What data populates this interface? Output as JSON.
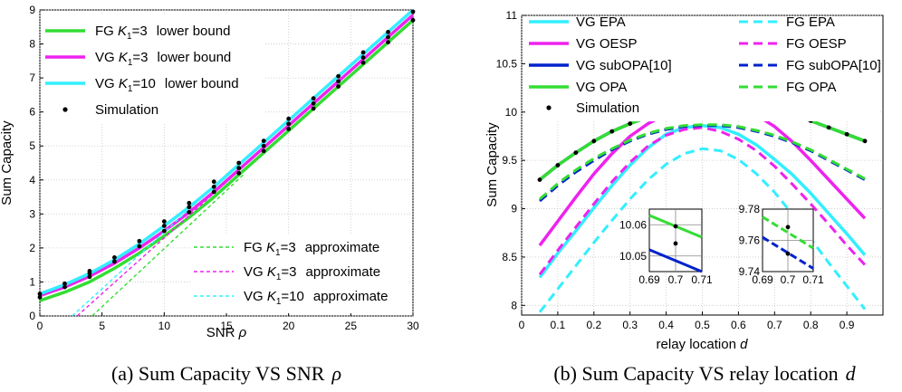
{
  "figures": [
    {
      "caption_text": "(a) Sum Capacity VS SNR",
      "caption_symbol": "ρ",
      "legend_main": [
        {
          "text": "FG",
          "k": "K",
          "sub": "1",
          "val": "=3",
          "rest": "lower bound",
          "color": "#33dd33"
        },
        {
          "text": "VG",
          "k": "K",
          "sub": "1",
          "val": "=3",
          "rest": "lower bound",
          "color": "#ee22ee"
        },
        {
          "text": "VG",
          "k": "K",
          "sub": "1",
          "val": "=10",
          "rest": "lower bound",
          "color": "#33eeff"
        },
        {
          "text": "Simulation",
          "color": "#000000"
        }
      ],
      "legend_approx": [
        {
          "text": "FG",
          "k": "K",
          "sub": "1",
          "val": "=3",
          "rest": "approximate",
          "color": "#33dd33"
        },
        {
          "text": "VG",
          "k": "K",
          "sub": "1",
          "val": "=3",
          "rest": "approximate",
          "color": "#ee22ee"
        },
        {
          "text": "VG",
          "k": "K",
          "sub": "1",
          "val": "=10",
          "rest": "approximate",
          "color": "#33eeff"
        }
      ]
    },
    {
      "caption_text": "(b) Sum Capacity VS relay location",
      "caption_symbol": "d",
      "inset_left": {
        "xlim": [
          0.69,
          0.71
        ],
        "ylim": [
          10.045,
          10.065
        ],
        "xticks": [
          "0.69",
          "0.7",
          "0.71"
        ],
        "yticks": [
          "10.06",
          "10.05"
        ]
      },
      "inset_right": {
        "xlim": [
          0.69,
          0.71
        ],
        "ylim": [
          9.74,
          9.78
        ],
        "xticks": [
          "0.69",
          "0.7",
          "0.71"
        ],
        "yticks": [
          "9.78",
          "9.76",
          "9.74"
        ]
      }
    }
  ],
  "chart_data": [
    {
      "type": "line",
      "title": "",
      "xlabel": "SNR",
      "xlabel_symbol": "ρ",
      "ylabel": "Sum Capacity",
      "xlim": [
        0,
        30
      ],
      "ylim": [
        0,
        9
      ],
      "xticks": [
        0,
        5,
        10,
        15,
        20,
        25,
        30
      ],
      "yticks": [
        0,
        1,
        2,
        3,
        4,
        5,
        6,
        7,
        8,
        9
      ],
      "grid": true,
      "legend_position": "top-left",
      "series": [
        {
          "name": "FG K1=3 lower bound",
          "style": "solid",
          "color": "#33dd33",
          "x": [
            0,
            2,
            4,
            6,
            8,
            10,
            12,
            14,
            16,
            18,
            20,
            22,
            24,
            26,
            28,
            30
          ],
          "y": [
            0.45,
            0.7,
            1.0,
            1.4,
            1.85,
            2.35,
            2.9,
            3.5,
            4.15,
            4.8,
            5.45,
            6.1,
            6.75,
            7.4,
            8.05,
            8.7
          ]
        },
        {
          "name": "VG K1=3 lower bound",
          "style": "solid",
          "color": "#ee22ee",
          "x": [
            0,
            2,
            4,
            6,
            8,
            10,
            12,
            14,
            16,
            18,
            20,
            22,
            24,
            26,
            28,
            30
          ],
          "y": [
            0.6,
            0.85,
            1.17,
            1.55,
            2.0,
            2.5,
            3.05,
            3.65,
            4.3,
            4.95,
            5.6,
            6.25,
            6.9,
            7.55,
            8.2,
            8.85
          ]
        },
        {
          "name": "VG K1=10 lower bound",
          "style": "solid",
          "color": "#33eeff",
          "x": [
            0,
            2,
            4,
            6,
            8,
            10,
            12,
            14,
            16,
            18,
            20,
            22,
            24,
            26,
            28,
            30
          ],
          "y": [
            0.65,
            0.92,
            1.25,
            1.65,
            2.12,
            2.65,
            3.2,
            3.8,
            4.45,
            5.1,
            5.75,
            6.4,
            7.05,
            7.7,
            8.35,
            9.0
          ]
        },
        {
          "name": "FG K1=3 approximate",
          "style": "dashed",
          "color": "#33dd33",
          "x": [
            4.2,
            16.5
          ],
          "y": [
            0.0,
            4.2
          ]
        },
        {
          "name": "VG K1=3 approximate",
          "style": "dashed",
          "color": "#ee22ee",
          "x": [
            3.0,
            15.8
          ],
          "y": [
            0.0,
            4.2
          ]
        },
        {
          "name": "VG K1=10 approximate",
          "style": "dashed",
          "color": "#33eeff",
          "x": [
            2.6,
            15.5
          ],
          "y": [
            0.0,
            4.3
          ]
        },
        {
          "name": "Simulation",
          "style": "markers",
          "color": "#000000",
          "x": [
            0,
            0,
            2,
            2,
            4,
            4,
            4,
            6,
            6,
            8,
            8,
            10,
            10,
            10,
            12,
            12,
            12,
            14,
            14,
            14,
            16,
            16,
            16,
            18,
            18,
            18,
            20,
            20,
            20,
            22,
            22,
            22,
            24,
            24,
            24,
            26,
            26,
            26,
            28,
            28,
            28,
            30,
            30
          ],
          "y": [
            0.55,
            0.65,
            0.85,
            0.95,
            1.15,
            1.25,
            1.32,
            1.6,
            1.72,
            2.05,
            2.2,
            2.5,
            2.65,
            2.78,
            3.05,
            3.2,
            3.32,
            3.65,
            3.8,
            3.95,
            4.2,
            4.35,
            4.5,
            4.85,
            5.0,
            5.15,
            5.5,
            5.65,
            5.8,
            6.1,
            6.25,
            6.4,
            6.75,
            6.9,
            7.05,
            7.45,
            7.6,
            7.75,
            8.05,
            8.2,
            8.35,
            8.7,
            8.95
          ]
        }
      ]
    },
    {
      "type": "line",
      "title": "",
      "xlabel": "relay location",
      "xlabel_symbol": "d",
      "ylabel": "Sum Capacity",
      "xlim": [
        0,
        1
      ],
      "ylim": [
        7.9,
        11
      ],
      "xticks": [
        0,
        0.1,
        0.2,
        0.3,
        0.4,
        0.5,
        0.6,
        0.7,
        0.8,
        0.9
      ],
      "yticks": [
        8,
        8.5,
        9,
        9.5,
        10,
        10.5,
        11
      ],
      "grid": true,
      "legend_position": "top",
      "series": [
        {
          "name": "VG EPA",
          "style": "solid",
          "color": "#33eeff",
          "x": [
            0.05,
            0.1,
            0.15,
            0.2,
            0.25,
            0.3,
            0.35,
            0.4,
            0.45,
            0.5,
            0.55,
            0.6,
            0.65,
            0.7,
            0.75,
            0.8,
            0.85,
            0.9,
            0.95
          ],
          "y": [
            8.29,
            8.54,
            8.77,
            9.01,
            9.24,
            9.45,
            9.63,
            9.77,
            9.84,
            9.86,
            9.84,
            9.77,
            9.66,
            9.51,
            9.35,
            9.16,
            8.95,
            8.74,
            8.52
          ]
        },
        {
          "name": "FG EPA",
          "style": "dashed",
          "color": "#33eeff",
          "x": [
            0.05,
            0.1,
            0.15,
            0.2,
            0.25,
            0.3,
            0.35,
            0.4,
            0.45,
            0.5,
            0.55,
            0.6,
            0.65,
            0.7,
            0.75,
            0.8,
            0.85,
            0.9,
            0.95
          ],
          "y": [
            7.93,
            8.17,
            8.41,
            8.65,
            8.88,
            9.1,
            9.3,
            9.46,
            9.57,
            9.62,
            9.6,
            9.51,
            9.36,
            9.17,
            8.94,
            8.69,
            8.44,
            8.2,
            7.96
          ]
        },
        {
          "name": "VG OESP",
          "style": "solid",
          "color": "#ee22ee",
          "x": [
            0.05,
            0.1,
            0.15,
            0.2,
            0.25,
            0.3,
            0.35,
            0.4,
            0.45,
            0.5,
            0.55,
            0.6,
            0.65,
            0.7,
            0.75,
            0.8,
            0.85,
            0.9,
            0.95
          ],
          "y": [
            8.62,
            8.87,
            9.12,
            9.36,
            9.57,
            9.75,
            9.88,
            9.98,
            10.04,
            10.07,
            10.07,
            10.04,
            9.97,
            9.85,
            9.69,
            9.5,
            9.3,
            9.1,
            8.9
          ]
        },
        {
          "name": "FG OESP",
          "style": "dashed",
          "color": "#ee22ee",
          "x": [
            0.05,
            0.1,
            0.15,
            0.2,
            0.25,
            0.3,
            0.35,
            0.4,
            0.45,
            0.5,
            0.55,
            0.6,
            0.65,
            0.7,
            0.75,
            0.8,
            0.85,
            0.9,
            0.95
          ],
          "y": [
            8.32,
            8.57,
            8.81,
            9.05,
            9.28,
            9.48,
            9.65,
            9.76,
            9.82,
            9.84,
            9.8,
            9.72,
            9.6,
            9.44,
            9.25,
            9.05,
            8.84,
            8.62,
            8.42
          ]
        },
        {
          "name": "VG subOPA[10]",
          "style": "solid",
          "color": "#0022cc",
          "x": [
            0.05,
            0.1,
            0.15,
            0.2,
            0.25,
            0.3,
            0.35,
            0.4,
            0.45,
            0.5,
            0.55,
            0.6,
            0.65,
            0.7,
            0.75,
            0.8,
            0.85,
            0.9,
            0.95
          ],
          "y": [
            9.3,
            9.45,
            9.58,
            9.7,
            9.8,
            9.88,
            9.95,
            10.01,
            10.05,
            10.07,
            10.08,
            10.07,
            10.05,
            10.02,
            9.97,
            9.91,
            9.84,
            9.77,
            9.7
          ]
        },
        {
          "name": "FG subOPA[10]",
          "style": "dashed",
          "color": "#0022cc",
          "x": [
            0.05,
            0.1,
            0.15,
            0.2,
            0.25,
            0.3,
            0.35,
            0.4,
            0.45,
            0.5,
            0.55,
            0.6,
            0.65,
            0.7,
            0.75,
            0.8,
            0.85,
            0.9,
            0.95
          ],
          "y": [
            9.08,
            9.24,
            9.38,
            9.5,
            9.61,
            9.7,
            9.77,
            9.82,
            9.85,
            9.86,
            9.86,
            9.84,
            9.8,
            9.75,
            9.68,
            9.6,
            9.5,
            9.4,
            9.3
          ]
        },
        {
          "name": "VG OPA",
          "style": "solid",
          "color": "#33dd33",
          "x": [
            0.05,
            0.1,
            0.15,
            0.2,
            0.25,
            0.3,
            0.35,
            0.4,
            0.45,
            0.5,
            0.55,
            0.6,
            0.65,
            0.7,
            0.75,
            0.8,
            0.85,
            0.9,
            0.95
          ],
          "y": [
            9.3,
            9.45,
            9.58,
            9.7,
            9.8,
            9.88,
            9.95,
            10.01,
            10.05,
            10.07,
            10.08,
            10.07,
            10.05,
            10.02,
            9.97,
            9.91,
            9.84,
            9.77,
            9.7
          ]
        },
        {
          "name": "FG OPA",
          "style": "dashed",
          "color": "#33dd33",
          "x": [
            0.05,
            0.1,
            0.15,
            0.2,
            0.25,
            0.3,
            0.35,
            0.4,
            0.45,
            0.5,
            0.55,
            0.6,
            0.65,
            0.7,
            0.75,
            0.8,
            0.85,
            0.9,
            0.95
          ],
          "y": [
            9.1,
            9.26,
            9.4,
            9.52,
            9.62,
            9.71,
            9.78,
            9.83,
            9.86,
            9.87,
            9.87,
            9.85,
            9.81,
            9.76,
            9.69,
            9.61,
            9.51,
            9.41,
            9.31
          ]
        },
        {
          "name": "Simulation",
          "style": "markers",
          "color": "#000000",
          "x": [
            0.05,
            0.1,
            0.15,
            0.2,
            0.25,
            0.3,
            0.35,
            0.4,
            0.45,
            0.5,
            0.55,
            0.6,
            0.65,
            0.7,
            0.75,
            0.8,
            0.85,
            0.9,
            0.95
          ],
          "y": [
            9.3,
            9.45,
            9.58,
            9.7,
            9.8,
            9.88,
            9.95,
            10.01,
            10.05,
            10.07,
            10.08,
            10.07,
            10.05,
            10.02,
            9.97,
            9.91,
            9.84,
            9.77,
            9.7
          ]
        }
      ]
    }
  ]
}
